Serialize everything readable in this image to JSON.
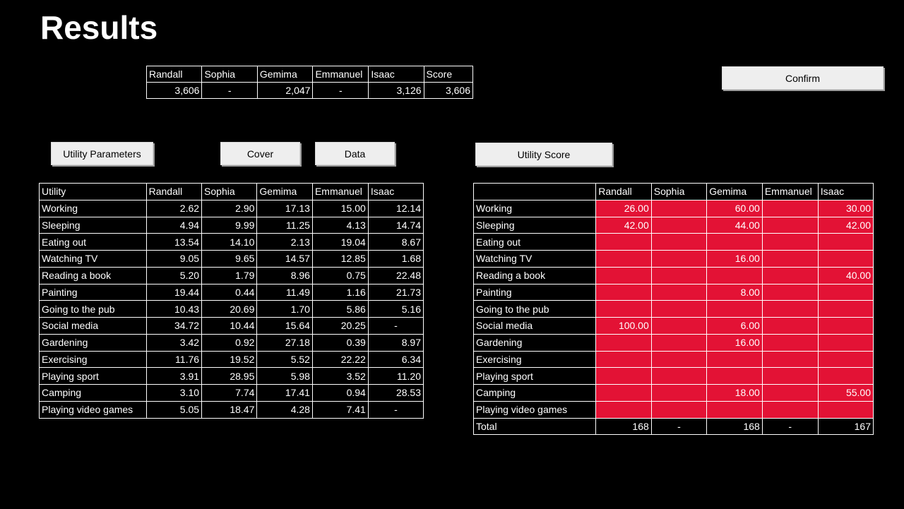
{
  "page": {
    "title": "Results"
  },
  "buttons": {
    "confirm": "Confirm",
    "utility_parameters": "Utility Parameters",
    "cover": "Cover",
    "data": "Data",
    "utility_score": "Utility Score"
  },
  "summary": {
    "headers": [
      "Randall",
      "Sophia",
      "Gemima",
      "Emmanuel",
      "Isaac",
      "Score"
    ],
    "values": [
      "3,606",
      "-",
      "2,047",
      "-",
      "3,126",
      "3,606"
    ]
  },
  "utility_table": {
    "header_label": "Utility",
    "people": [
      "Randall",
      "Sophia",
      "Gemima",
      "Emmanuel",
      "Isaac"
    ],
    "rows": [
      {
        "label": "Working",
        "values": [
          "2.62",
          "2.90",
          "17.13",
          "15.00",
          "12.14"
        ]
      },
      {
        "label": "Sleeping",
        "values": [
          "4.94",
          "9.99",
          "11.25",
          "4.13",
          "14.74"
        ]
      },
      {
        "label": "Eating out",
        "values": [
          "13.54",
          "14.10",
          "2.13",
          "19.04",
          "8.67"
        ]
      },
      {
        "label": "Watching TV",
        "values": [
          "9.05",
          "9.65",
          "14.57",
          "12.85",
          "1.68"
        ]
      },
      {
        "label": "Reading a book",
        "values": [
          "5.20",
          "1.79",
          "8.96",
          "0.75",
          "22.48"
        ]
      },
      {
        "label": "Painting",
        "values": [
          "19.44",
          "0.44",
          "11.49",
          "1.16",
          "21.73"
        ]
      },
      {
        "label": "Going to the pub",
        "values": [
          "10.43",
          "20.69",
          "1.70",
          "5.86",
          "5.16"
        ]
      },
      {
        "label": "Social media",
        "values": [
          "34.72",
          "10.44",
          "15.64",
          "20.25",
          "-"
        ]
      },
      {
        "label": "Gardening",
        "values": [
          "3.42",
          "0.92",
          "27.18",
          "0.39",
          "8.97"
        ]
      },
      {
        "label": "Exercising",
        "values": [
          "11.76",
          "19.52",
          "5.52",
          "22.22",
          "6.34"
        ]
      },
      {
        "label": "Playing sport",
        "values": [
          "3.91",
          "28.95",
          "5.98",
          "3.52",
          "11.20"
        ]
      },
      {
        "label": "Camping",
        "values": [
          "3.10",
          "7.74",
          "17.41",
          "0.94",
          "28.53"
        ]
      },
      {
        "label": "Playing video games",
        "values": [
          "5.05",
          "18.47",
          "4.28",
          "7.41",
          "-"
        ]
      }
    ]
  },
  "score_table": {
    "header_label": "",
    "people": [
      "Randall",
      "Sophia",
      "Gemima",
      "Emmanuel",
      "Isaac"
    ],
    "fill_color": "#e31235",
    "rows": [
      {
        "label": "Working",
        "values": [
          "26.00",
          "",
          "60.00",
          "",
          "30.00"
        ]
      },
      {
        "label": "Sleeping",
        "values": [
          "42.00",
          "",
          "44.00",
          "",
          "42.00"
        ]
      },
      {
        "label": "Eating out",
        "values": [
          "",
          "",
          "",
          "",
          ""
        ]
      },
      {
        "label": "Watching TV",
        "values": [
          "",
          "",
          "16.00",
          "",
          ""
        ]
      },
      {
        "label": "Reading a book",
        "values": [
          "",
          "",
          "",
          "",
          "40.00"
        ]
      },
      {
        "label": "Painting",
        "values": [
          "",
          "",
          "8.00",
          "",
          ""
        ]
      },
      {
        "label": "Going to the pub",
        "values": [
          "",
          "",
          "",
          "",
          ""
        ]
      },
      {
        "label": "Social media",
        "values": [
          "100.00",
          "",
          "6.00",
          "",
          ""
        ]
      },
      {
        "label": "Gardening",
        "values": [
          "",
          "",
          "16.00",
          "",
          ""
        ]
      },
      {
        "label": "Exercising",
        "values": [
          "",
          "",
          "",
          "",
          ""
        ]
      },
      {
        "label": "Playing sport",
        "values": [
          "",
          "",
          "",
          "",
          ""
        ]
      },
      {
        "label": "Camping",
        "values": [
          "",
          "",
          "18.00",
          "",
          "55.00"
        ]
      },
      {
        "label": "Playing video games",
        "values": [
          "",
          "",
          "",
          "",
          ""
        ]
      }
    ],
    "total": {
      "label": "Total",
      "values": [
        "168",
        "-",
        "168",
        "-",
        "167"
      ]
    }
  }
}
